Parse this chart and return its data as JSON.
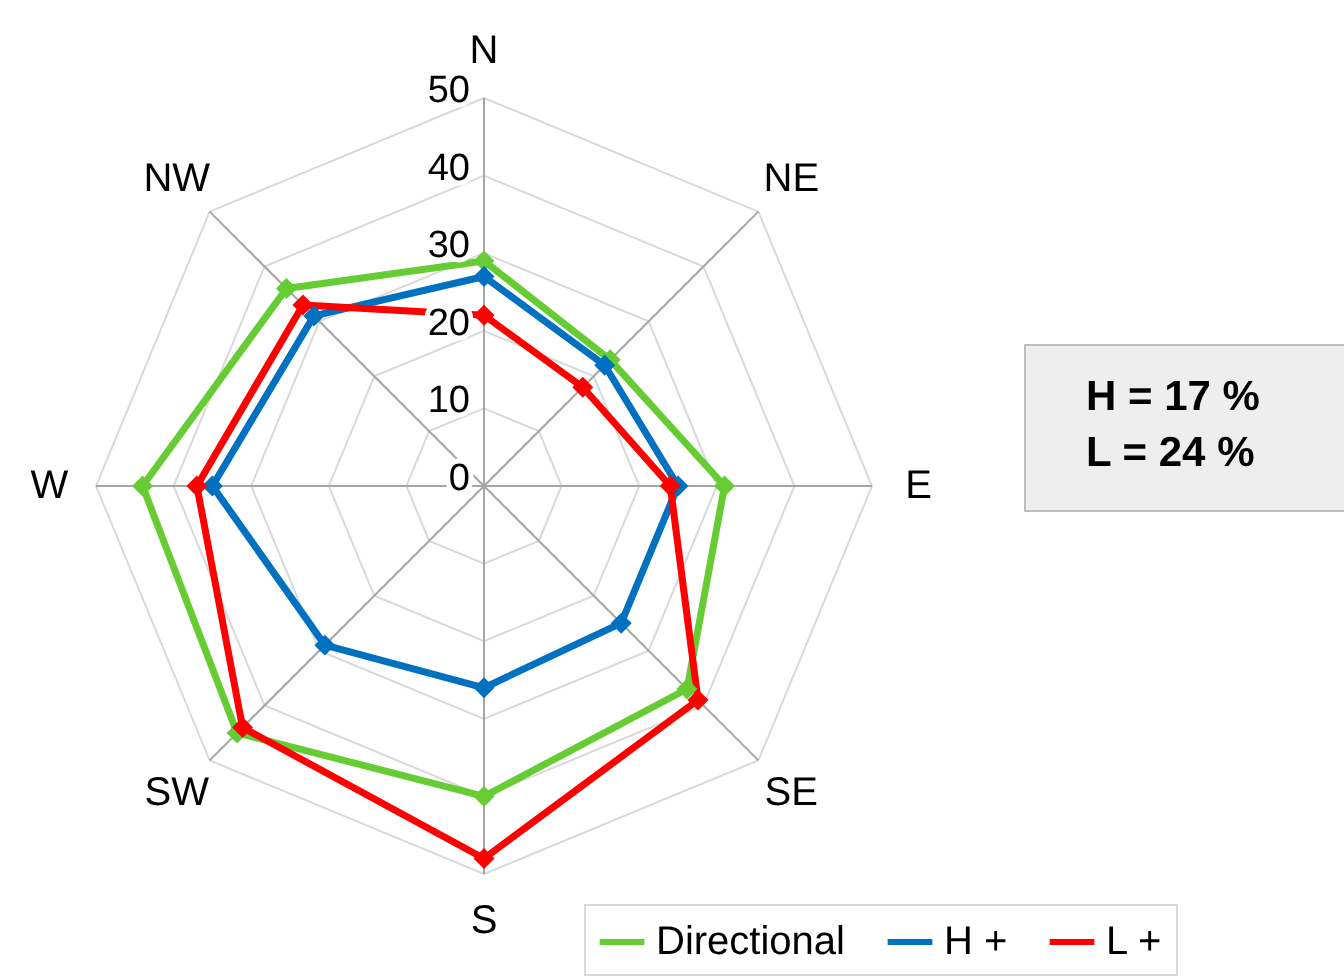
{
  "chart_data": {
    "type": "radar",
    "categories": [
      "N",
      "NE",
      "E",
      "SE",
      "S",
      "SW",
      "W",
      "NW"
    ],
    "series": [
      {
        "name": "Directional",
        "color": "#66cc33",
        "values": [
          29,
          23,
          31,
          37,
          40,
          45,
          44,
          36
        ]
      },
      {
        "name": "H +",
        "color": "#0070c0",
        "values": [
          27,
          22,
          25,
          25,
          26,
          29,
          35,
          31
        ]
      },
      {
        "name": "L +",
        "color": "#ff0000",
        "values": [
          22,
          18,
          24,
          39,
          48,
          44,
          37,
          33
        ]
      }
    ],
    "ylim": [
      0,
      50
    ],
    "yticks": [
      0,
      10,
      20,
      30,
      40,
      50
    ],
    "grid": true,
    "legend": "bottom",
    "marker": "diamond",
    "line_style": "solid",
    "annotations": [
      "H = 17 %",
      "L = 24 %"
    ]
  }
}
